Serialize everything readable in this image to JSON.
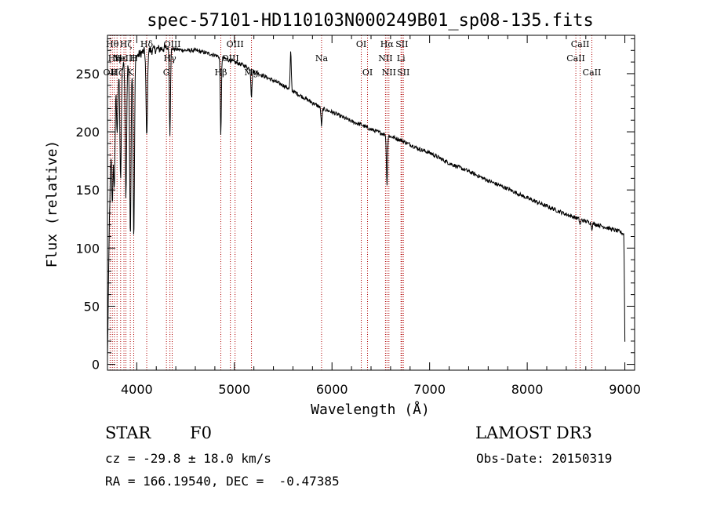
{
  "chart_data": {
    "type": "line",
    "title": "spec-57101-HD110103N000249B01_sp08-135.fits",
    "xlabel": "Wavelength (Å)",
    "ylabel": "Flux (relative)",
    "xlim": [
      3700,
      9100
    ],
    "ylim": [
      -5,
      283
    ],
    "xticks": [
      4000,
      5000,
      6000,
      7000,
      8000,
      9000
    ],
    "yticks": [
      0,
      50,
      100,
      150,
      200,
      250
    ],
    "continuum": {
      "x": [
        3700,
        3720,
        3740,
        3760,
        3800,
        3840,
        3880,
        3900,
        3950,
        4000,
        4050,
        4100,
        4150,
        4200,
        4300,
        4400,
        4500,
        4600,
        4700,
        4800,
        4900,
        5000,
        5100,
        5200,
        5300,
        5400,
        5500,
        5600,
        5700,
        5800,
        5900,
        6000,
        6100,
        6200,
        6300,
        6400,
        6500,
        6600,
        6700,
        6800,
        6900,
        7000,
        7200,
        7400,
        7600,
        7800,
        8000,
        8200,
        8400,
        8600,
        8800,
        8950,
        8990,
        9000
      ],
      "y": [
        5,
        125,
        200,
        235,
        250,
        256,
        258,
        258,
        262,
        265,
        268,
        270,
        270,
        271,
        272,
        271,
        270,
        270,
        268,
        266,
        263,
        260,
        257,
        252,
        248,
        244,
        240,
        235,
        230,
        225,
        220,
        217,
        213,
        209,
        206,
        202,
        199,
        196,
        193,
        189,
        185,
        182,
        173,
        166,
        158,
        151,
        143,
        136,
        129,
        123,
        118,
        114,
        112,
        20
      ]
    },
    "absorption_features": [
      {
        "x": 3750,
        "y": 140
      },
      {
        "x": 3770,
        "y": 150
      },
      {
        "x": 3800,
        "y": 200
      },
      {
        "x": 3835,
        "y": 160
      },
      {
        "x": 3889,
        "y": 145
      },
      {
        "x": 3934,
        "y": 112
      },
      {
        "x": 3970,
        "y": 108
      },
      {
        "x": 4102,
        "y": 195
      },
      {
        "x": 4340,
        "y": 198
      },
      {
        "x": 4861,
        "y": 198
      },
      {
        "x": 5175,
        "y": 230
      },
      {
        "x": 5893,
        "y": 205
      },
      {
        "x": 6563,
        "y": 155
      },
      {
        "x": 8542,
        "y": 120
      },
      {
        "x": 8662,
        "y": 117
      }
    ],
    "emission_features": [
      {
        "x": 5577,
        "y": 268
      }
    ],
    "reference_lines": [
      {
        "x": 3727,
        "label": "OII",
        "row": 2
      },
      {
        "x": 3750,
        "label": "Hθ",
        "row": 0
      },
      {
        "x": 3771,
        "label": "Hη",
        "row": 1
      },
      {
        "x": 3798,
        "label": "Hζ",
        "row": 2
      },
      {
        "x": 3835,
        "label": "Hε",
        "row": 1
      },
      {
        "x": 3869,
        "label": "NeIII",
        "row": 1
      },
      {
        "x": 3889,
        "label": "Hζ",
        "row": 0
      },
      {
        "x": 3934,
        "label": "K",
        "row": 2
      },
      {
        "x": 3969,
        "label": "H",
        "row": 1
      },
      {
        "x": 4102,
        "label": "Hδ",
        "row": 0
      },
      {
        "x": 4304,
        "label": "G",
        "row": 2
      },
      {
        "x": 4340,
        "label": "Hγ",
        "row": 1
      },
      {
        "x": 4363,
        "label": "OIII",
        "row": 0
      },
      {
        "x": 4861,
        "label": "Hβ",
        "row": 2
      },
      {
        "x": 4959,
        "label": "OIII",
        "row": 1
      },
      {
        "x": 5007,
        "label": "OIII",
        "row": 0
      },
      {
        "x": 5175,
        "label": "Mg",
        "row": 2
      },
      {
        "x": 5893,
        "label": "Na",
        "row": 1
      },
      {
        "x": 6300,
        "label": "OI",
        "row": 0
      },
      {
        "x": 6364,
        "label": "OI",
        "row": 2
      },
      {
        "x": 6548,
        "label": "NII",
        "row": 1
      },
      {
        "x": 6563,
        "label": "Hα",
        "row": 0
      },
      {
        "x": 6583,
        "label": "NII",
        "row": 2
      },
      {
        "x": 6707,
        "label": "Li",
        "row": 1
      },
      {
        "x": 6716,
        "label": "SII",
        "row": 0
      },
      {
        "x": 6731,
        "label": "SII",
        "row": 2
      },
      {
        "x": 8498,
        "label": "CaII",
        "row": 1
      },
      {
        "x": 8542,
        "label": "CaII",
        "row": 0
      },
      {
        "x": 8662,
        "label": "CaII",
        "row": 2
      }
    ]
  },
  "info": {
    "object_class": "STAR",
    "subclass": "F0",
    "survey": "LAMOST DR3",
    "redshift": "cz = -29.8 ± 18.0 km/s",
    "obs_date": "Obs-Date: 20150319",
    "coordinates": "RA = 166.19540, DEC =  -0.47385"
  },
  "colors": {
    "spectrum": "#000000",
    "reference_line": "#b00000",
    "label": "#000000"
  }
}
